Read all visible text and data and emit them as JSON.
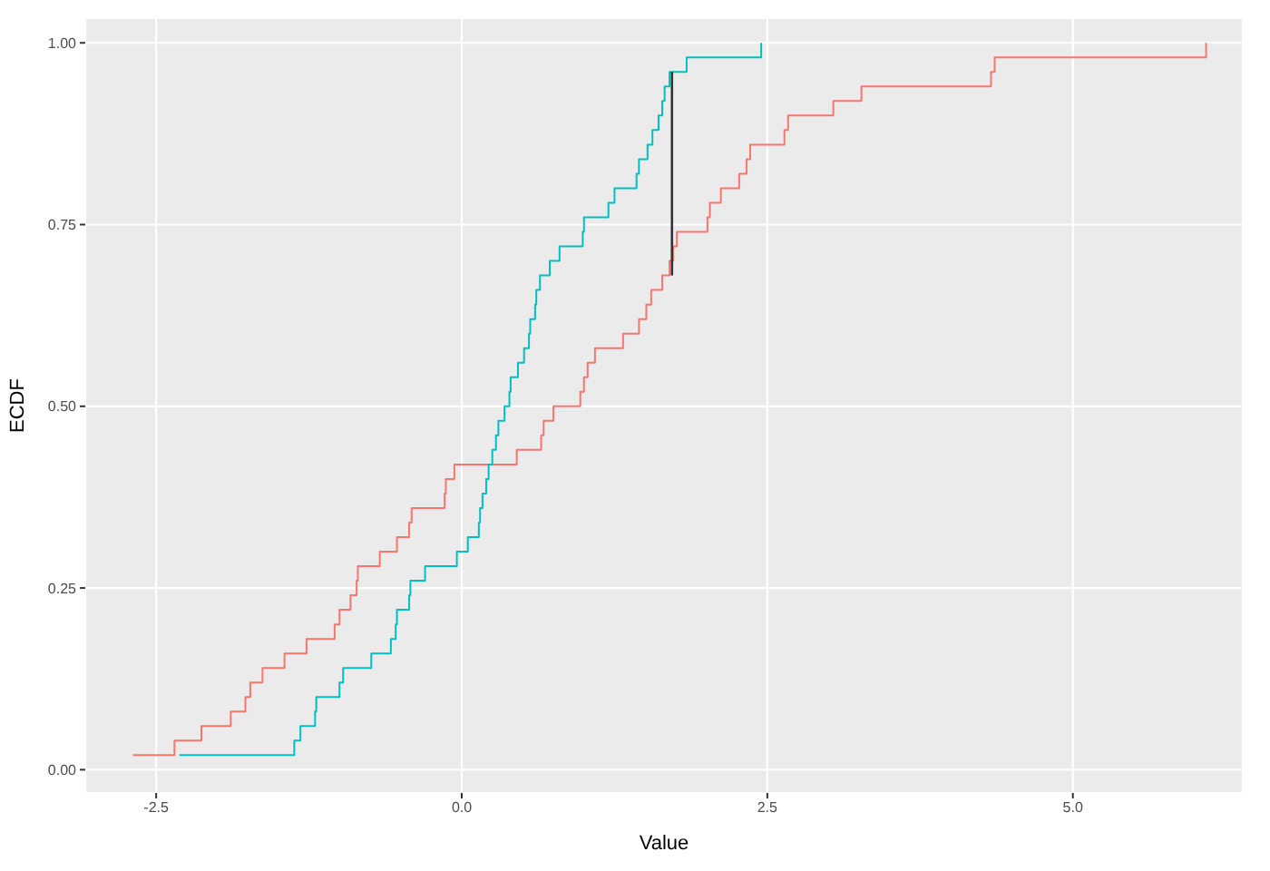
{
  "chart_data": {
    "type": "step",
    "xlabel": "Value",
    "ylabel": "ECDF",
    "xlim": [
      -3.08,
      6.39
    ],
    "xticks": [
      -2.5,
      {
        "value": 0,
        "label": "0.0"
      },
      2.5,
      {
        "value": 5,
        "label": "5.0"
      }
    ],
    "ylim": [
      -0.032,
      1.034
    ],
    "yticks": [
      {
        "value": 0,
        "label": "0.00"
      },
      0.25,
      {
        "value": 0.5,
        "label": "0.50"
      },
      0.75,
      {
        "value": 1,
        "label": "1.00"
      }
    ],
    "grid": true,
    "marker": "none",
    "series": [
      {
        "type": "step",
        "color": "#f8766d",
        "x": [
          -2.69,
          -2.35,
          -2.13,
          -1.89,
          -1.77,
          -1.73,
          -1.63,
          -1.45,
          -1.27,
          -1.04,
          -1.0,
          -0.91,
          -0.86,
          -0.85,
          -0.67,
          -0.53,
          -0.43,
          -0.41,
          -0.14,
          -0.13,
          -0.06,
          0.45,
          0.65,
          0.67,
          0.75,
          0.97,
          1.0,
          1.03,
          1.09,
          1.32,
          1.45,
          1.51,
          1.55,
          1.64,
          1.7,
          1.73,
          1.76,
          2.01,
          2.03,
          2.12,
          2.27,
          2.33,
          2.36,
          2.64,
          2.67,
          3.04,
          3.27,
          4.33,
          4.36,
          6.09
        ],
        "values": [
          0.02,
          0.04,
          0.06,
          0.08,
          0.1,
          0.12,
          0.14,
          0.16,
          0.18,
          0.2,
          0.22,
          0.24,
          0.26,
          0.28,
          0.3,
          0.32,
          0.34,
          0.36,
          0.38,
          0.4,
          0.42,
          0.44,
          0.46,
          0.48,
          0.5,
          0.52,
          0.54,
          0.56,
          0.58,
          0.6,
          0.62,
          0.64,
          0.66,
          0.68,
          0.7,
          0.72,
          0.74,
          0.76,
          0.78,
          0.8,
          0.82,
          0.84,
          0.86,
          0.88,
          0.9,
          0.92,
          0.94,
          0.96,
          0.98,
          1.0
        ]
      },
      {
        "type": "step",
        "color": "#00bfc4",
        "x": [
          -2.31,
          -1.37,
          -1.32,
          -1.2,
          -1.19,
          -1.0,
          -0.97,
          -0.74,
          -0.58,
          -0.54,
          -0.53,
          -0.43,
          -0.42,
          -0.3,
          -0.04,
          0.05,
          0.14,
          0.15,
          0.17,
          0.2,
          0.22,
          0.25,
          0.28,
          0.3,
          0.35,
          0.39,
          0.4,
          0.46,
          0.51,
          0.55,
          0.56,
          0.6,
          0.61,
          0.64,
          0.72,
          0.8,
          0.99,
          1.0,
          1.2,
          1.25,
          1.43,
          1.45,
          1.52,
          1.56,
          1.61,
          1.64,
          1.66,
          1.7,
          1.84,
          2.45
        ],
        "values": [
          0.02,
          0.04,
          0.06,
          0.08,
          0.1,
          0.12,
          0.14,
          0.16,
          0.18,
          0.2,
          0.22,
          0.24,
          0.26,
          0.28,
          0.3,
          0.32,
          0.34,
          0.36,
          0.38,
          0.4,
          0.42,
          0.44,
          0.46,
          0.48,
          0.5,
          0.52,
          0.54,
          0.56,
          0.58,
          0.6,
          0.62,
          0.64,
          0.66,
          0.68,
          0.7,
          0.72,
          0.74,
          0.76,
          0.78,
          0.8,
          0.82,
          0.84,
          0.86,
          0.88,
          0.9,
          0.92,
          0.94,
          0.96,
          0.98,
          1.0
        ]
      },
      {
        "type": "line",
        "color": "#333333",
        "x": [
          1.72,
          1.72
        ],
        "values": [
          0.68,
          0.96
        ]
      }
    ]
  }
}
